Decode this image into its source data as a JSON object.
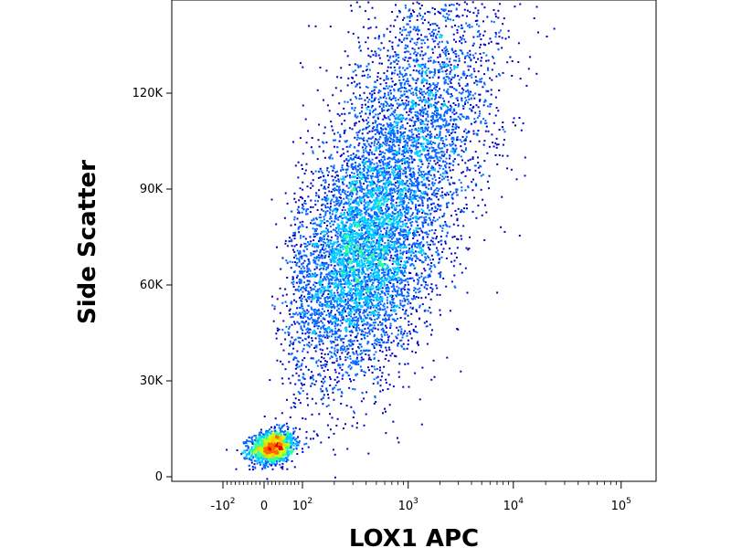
{
  "chart_data": {
    "type": "scatter",
    "title": "",
    "xlabel": "LOX1 APC",
    "ylabel": "Side Scatter",
    "x_scale": "biexponential",
    "y_scale": "linear",
    "x_ticks": [
      {
        "value": -100,
        "base": "-10",
        "exp": "2"
      },
      {
        "value": 0,
        "base": "0",
        "exp": ""
      },
      {
        "value": 100,
        "base": "10",
        "exp": "2"
      },
      {
        "value": 1000,
        "base": "10",
        "exp": "3"
      },
      {
        "value": 10000,
        "base": "10",
        "exp": "4"
      },
      {
        "value": 100000,
        "base": "10",
        "exp": "5"
      }
    ],
    "y_ticks": [
      {
        "value": 0,
        "label": "0"
      },
      {
        "value": 30000,
        "label": "30K"
      },
      {
        "value": 60000,
        "label": "60K"
      },
      {
        "value": 90000,
        "label": "90K"
      },
      {
        "value": 120000,
        "label": "120K"
      }
    ],
    "ylim": [
      -2000,
      148000
    ],
    "populations": [
      {
        "center_x": 20,
        "center_y": 9500,
        "spread_x_decades": 0.2,
        "spread_y": 2500,
        "count": 1500
      },
      {
        "center_x": 350,
        "center_y": 68000,
        "spread_x_decades": 0.35,
        "spread_y": 18000,
        "count": 5000
      },
      {
        "center_x": 1200,
        "center_y": 110000,
        "spread_x_decades": 0.4,
        "spread_y": 22000,
        "count": 3000
      }
    ],
    "color_scale": [
      "#0000c8",
      "#0066ff",
      "#00ccff",
      "#33ff99",
      "#ccff00",
      "#ffcc00",
      "#ff6600",
      "#e60000"
    ],
    "grid": false,
    "legend": "none"
  }
}
